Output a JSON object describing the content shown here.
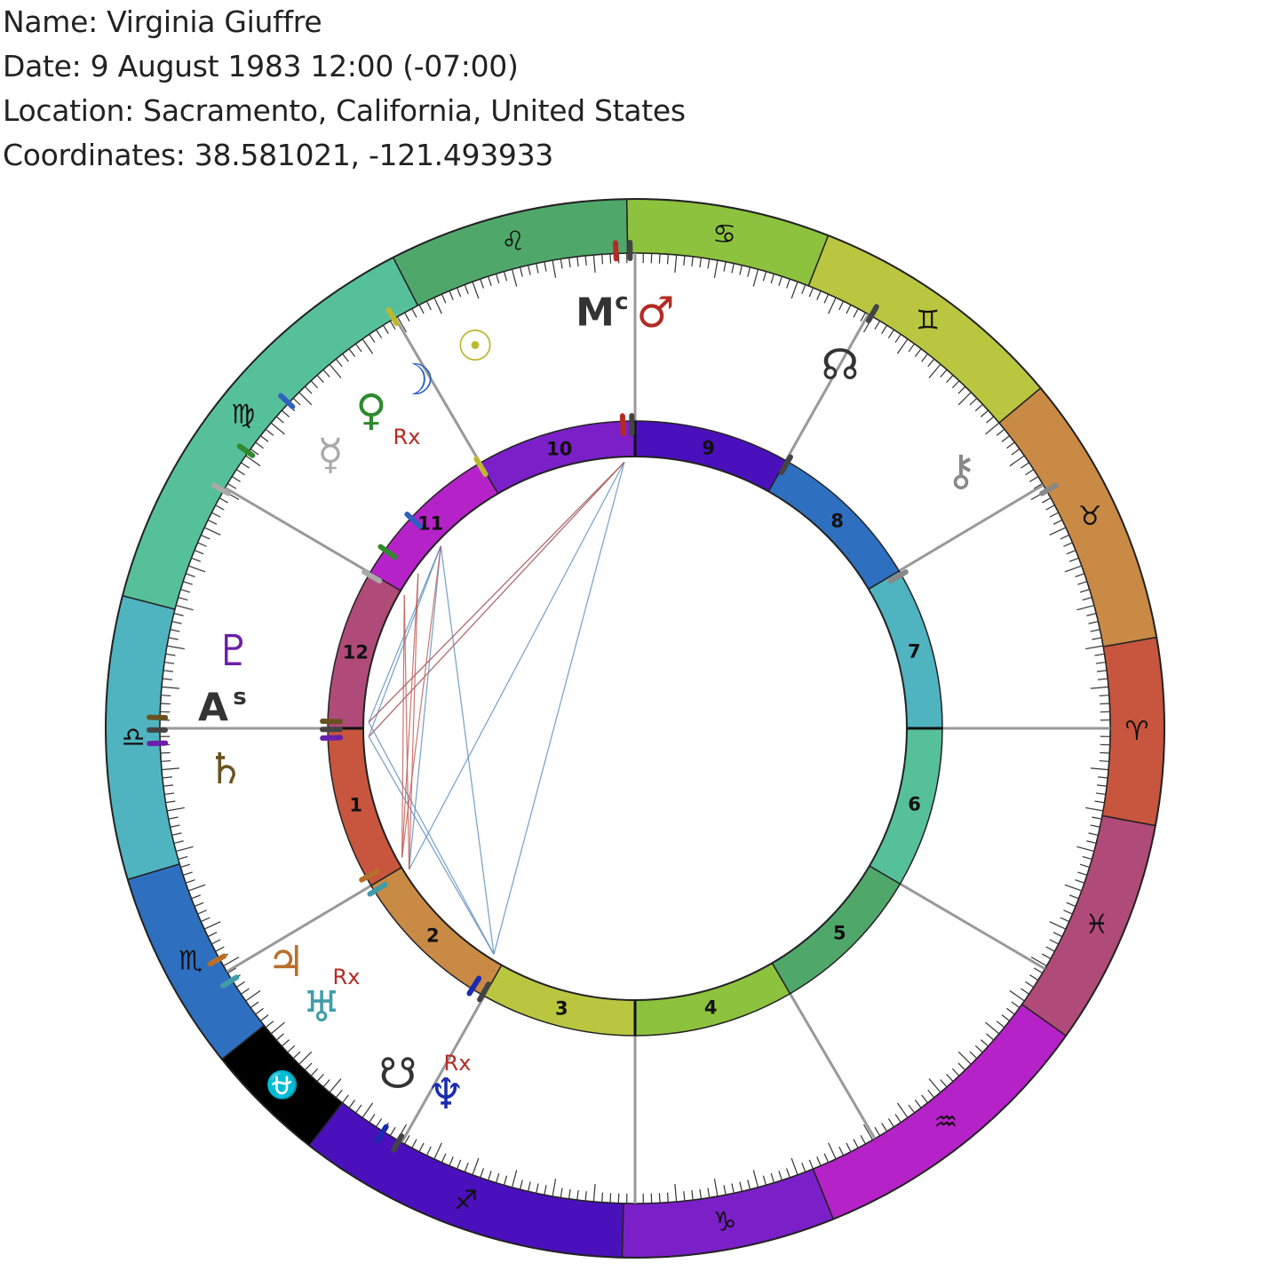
{
  "info": {
    "name": "Name: Virginia Giuffre",
    "date": "Date: 9 August 1983 12:00 (-07:00)",
    "location": "Location: Sacramento, California, United States",
    "coordinates": "Coordinates: 38.581021, -121.493933"
  },
  "signs": [
    {
      "name": "aries",
      "glyph": "♈",
      "color": "#c8553d"
    },
    {
      "name": "taurus",
      "glyph": "♉",
      "color": "#c98a45"
    },
    {
      "name": "gemini",
      "glyph": "♊",
      "color": "#bac540"
    },
    {
      "name": "cancer",
      "glyph": "♋",
      "color": "#8dc23f"
    },
    {
      "name": "leo",
      "glyph": "♌",
      "color": "#4fa86a"
    },
    {
      "name": "virgo",
      "glyph": "♍",
      "color": "#56c09a"
    },
    {
      "name": "libra",
      "glyph": "♎",
      "color": "#4fb3c0"
    },
    {
      "name": "scorpio",
      "glyph": "♏",
      "color": "#2f6fbf"
    },
    {
      "name": "ophiuchus",
      "glyph": "⛎",
      "color": "#000000"
    },
    {
      "name": "sagittarius",
      "glyph": "♐",
      "color": "#4a10bb"
    },
    {
      "name": "capricorn",
      "glyph": "♑",
      "color": "#7b1fc9"
    },
    {
      "name": "aquarius",
      "glyph": "♒",
      "color": "#b522c7"
    },
    {
      "name": "pisces",
      "glyph": "♓",
      "color": "#b04a78"
    }
  ],
  "houses": [
    {
      "label": "1",
      "color": "#c8553d"
    },
    {
      "label": "2",
      "color": "#c98a45"
    },
    {
      "label": "3",
      "color": "#bac540"
    },
    {
      "label": "4",
      "color": "#8dc23f"
    },
    {
      "label": "5",
      "color": "#4fa86a"
    },
    {
      "label": "6",
      "color": "#56c09a"
    },
    {
      "label": "7",
      "color": "#4fb3c0"
    },
    {
      "label": "8",
      "color": "#2f6fbf"
    },
    {
      "label": "9",
      "color": "#4a10bb"
    },
    {
      "label": "10",
      "color": "#7b1fc9"
    },
    {
      "label": "11",
      "color": "#b522c7"
    },
    {
      "label": "12",
      "color": "#b04a78"
    }
  ],
  "angles": {
    "ascendant": {
      "glyph": "A",
      "sub": "s",
      "color": "#333333"
    },
    "midheaven": {
      "glyph": "M",
      "sub": "c",
      "color": "#333333"
    }
  },
  "planets": [
    {
      "name": "sun",
      "glyph": "☉",
      "color": "#bdb832"
    },
    {
      "name": "moon",
      "glyph": "☽",
      "color": "#2f5fbf"
    },
    {
      "name": "mercury",
      "glyph": "☿",
      "color": "#aaaaaa"
    },
    {
      "name": "venus",
      "glyph": "♀",
      "color": "#2f8a2f"
    },
    {
      "name": "mars",
      "glyph": "♂",
      "color": "#b42a24"
    },
    {
      "name": "jupiter",
      "glyph": "♃",
      "color": "#b86f2a"
    },
    {
      "name": "saturn",
      "glyph": "♄",
      "color": "#6a5220"
    },
    {
      "name": "uranus",
      "glyph": "♅",
      "color": "#3f9ca8"
    },
    {
      "name": "neptune",
      "glyph": "♆",
      "color": "#1a2bb0"
    },
    {
      "name": "pluto",
      "glyph": "♇",
      "color": "#6a1fa8"
    },
    {
      "name": "north-node",
      "glyph": "☊",
      "color": "#333333"
    },
    {
      "name": "south-node",
      "glyph": "☋",
      "color": "#333333"
    },
    {
      "name": "chiron",
      "glyph": "⚷",
      "color": "#888888"
    }
  ],
  "retrograde_label": "Rx",
  "retrograde_color": "#b42a24"
}
